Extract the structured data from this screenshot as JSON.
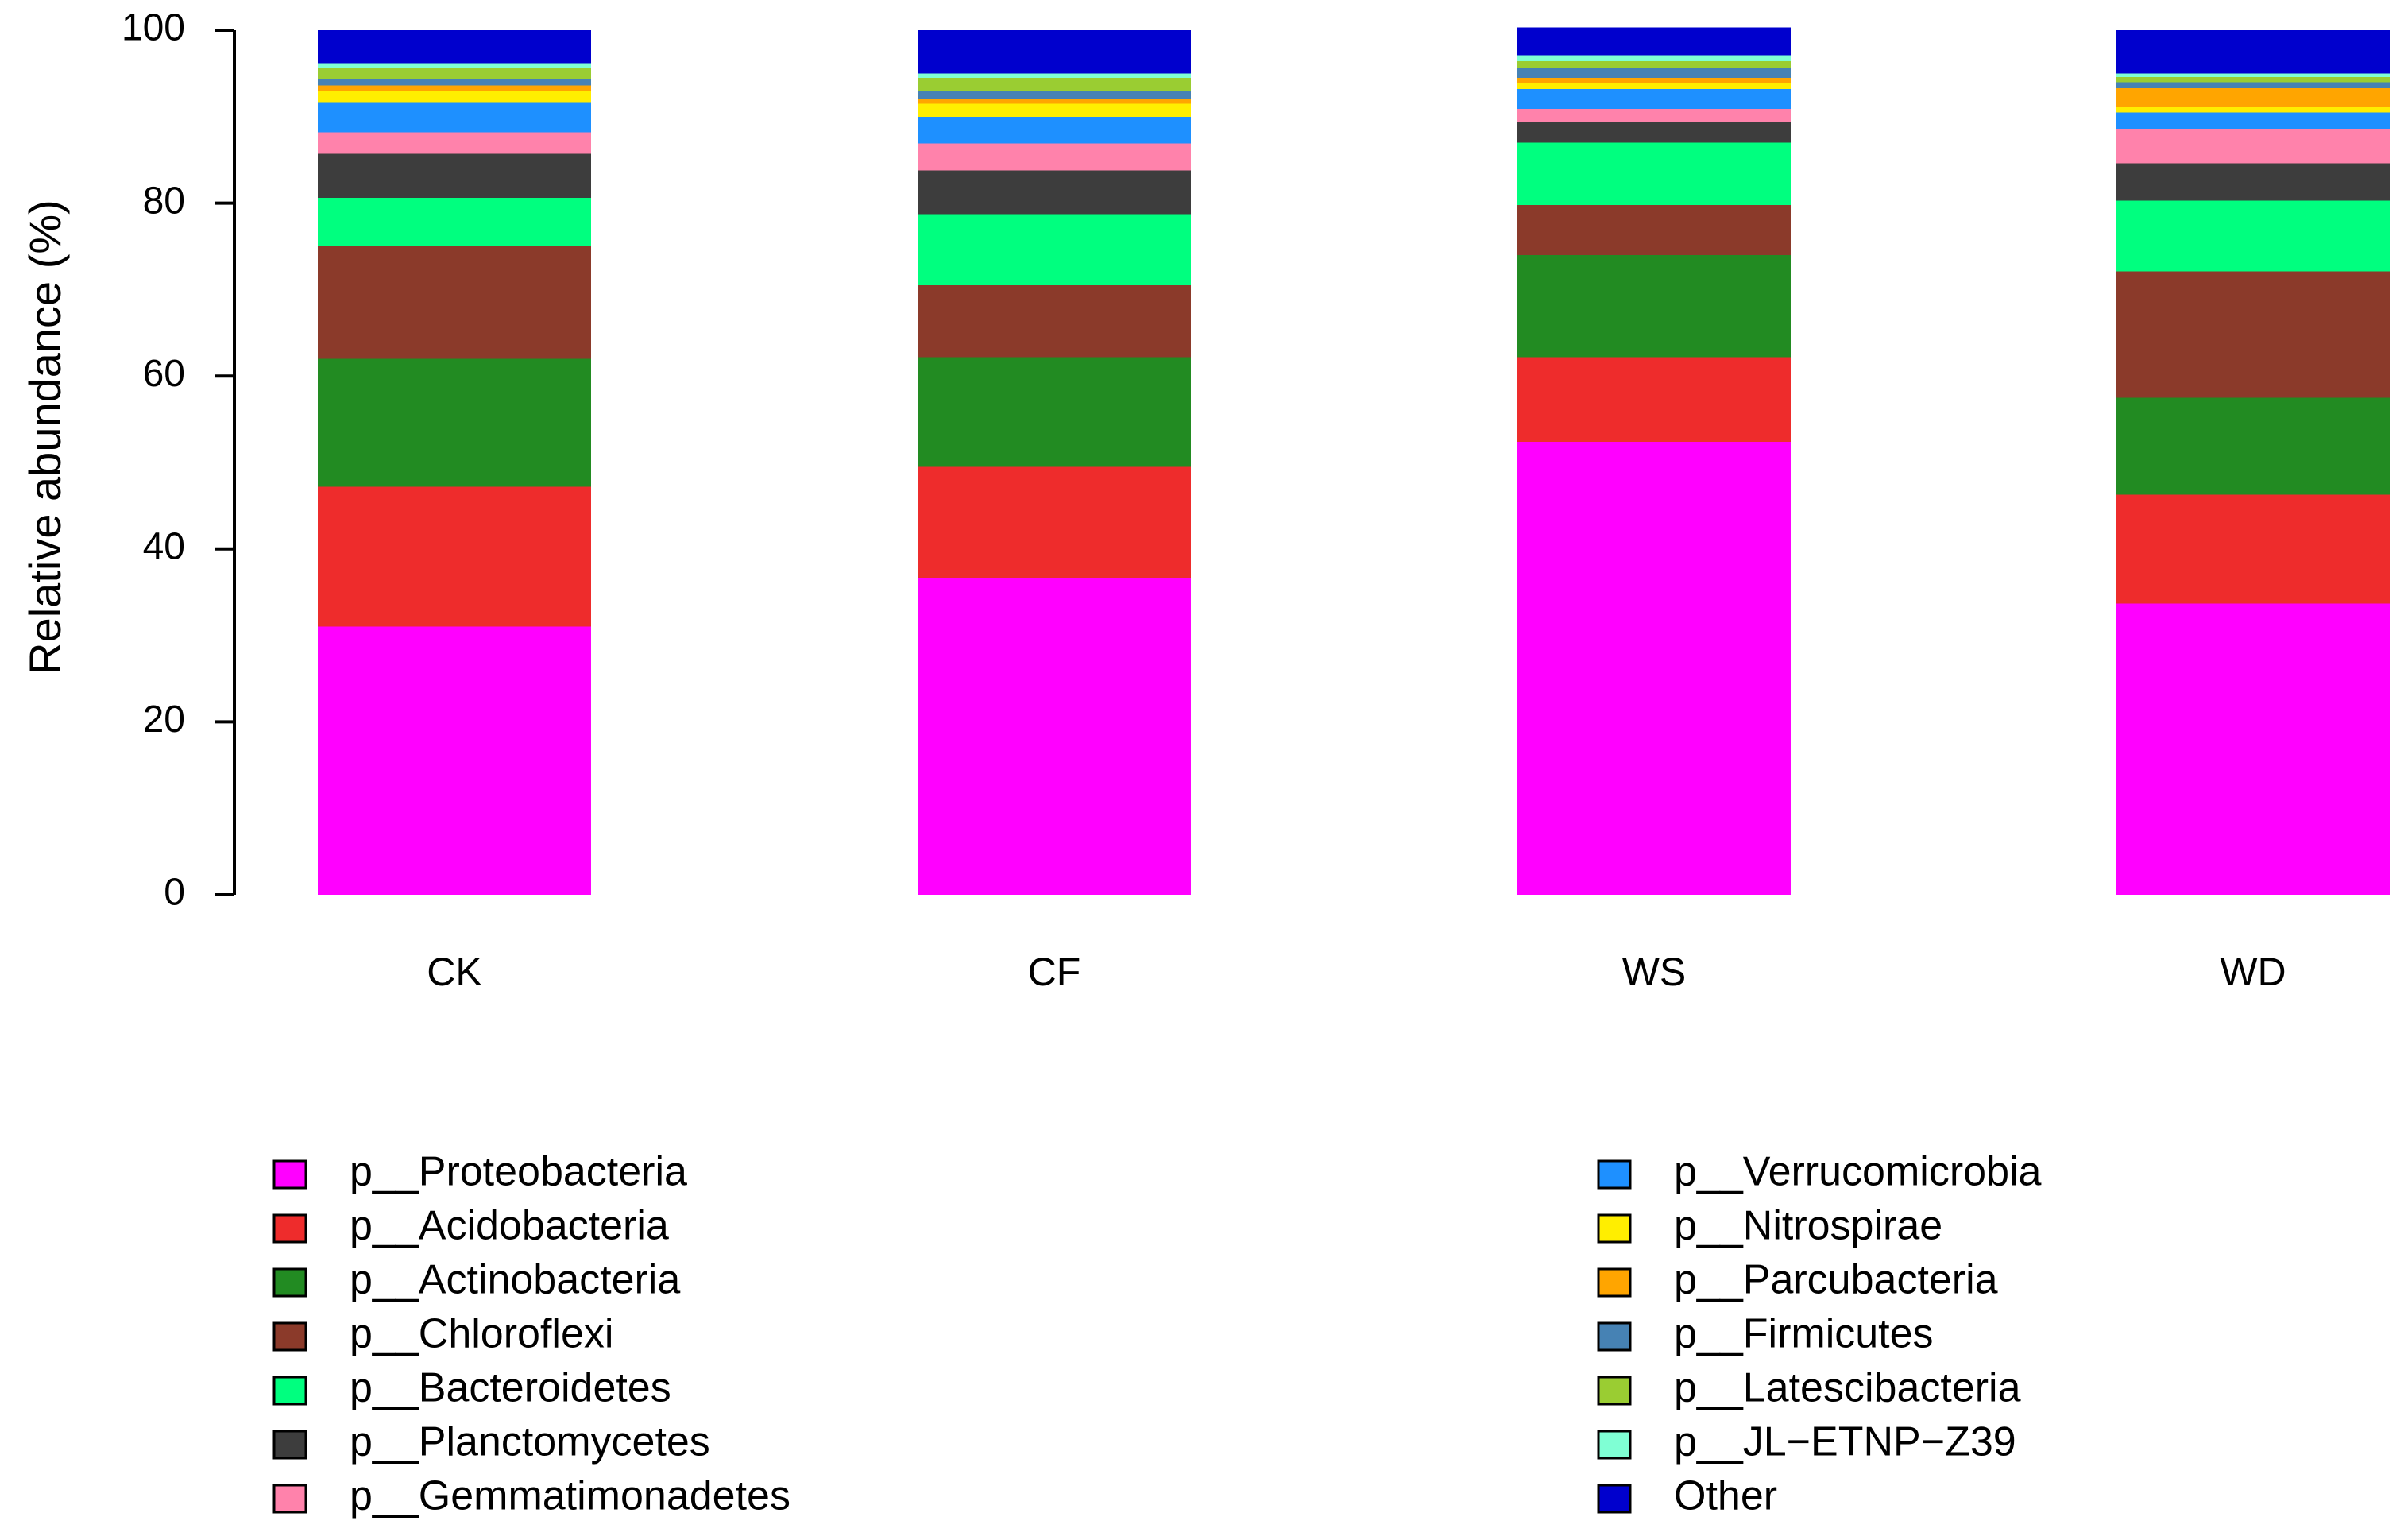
{
  "chart_data": {
    "type": "bar",
    "stacked": true,
    "title": "",
    "xlabel": "",
    "ylabel": "Relative abundance (%)",
    "ylim": [
      0,
      100
    ],
    "yticks": [
      0,
      20,
      40,
      60,
      80,
      100
    ],
    "grid": false,
    "legend_position": "bottom",
    "categories": [
      "CK",
      "CF",
      "WS",
      "WD"
    ],
    "series": [
      {
        "name": "p__Proteobacteria",
        "color": "#FF00FF",
        "values": [
          31.0,
          36.6,
          52.4,
          33.7
        ]
      },
      {
        "name": "p__Acidobacteria",
        "color": "#EE2C2C",
        "values": [
          16.2,
          12.9,
          9.8,
          12.6
        ]
      },
      {
        "name": "p__Actinobacteria",
        "color": "#228B22",
        "values": [
          14.8,
          12.7,
          11.8,
          11.2
        ]
      },
      {
        "name": "p__Chloroflexi",
        "color": "#8B3A2A",
        "values": [
          13.1,
          8.3,
          5.8,
          14.6
        ]
      },
      {
        "name": "p__Bacteroidetes",
        "color": "#00FF7F",
        "values": [
          5.5,
          8.2,
          7.2,
          8.2
        ]
      },
      {
        "name": "p__Planctomycetes",
        "color": "#3D3D3D",
        "values": [
          5.1,
          5.1,
          2.4,
          4.3
        ]
      },
      {
        "name": "p__Gemmatimonadetes",
        "color": "#FF82AB",
        "values": [
          2.5,
          3.1,
          1.5,
          4.0
        ]
      },
      {
        "name": "p__Verrucomicrobia",
        "color": "#1E90FF",
        "values": [
          3.5,
          3.1,
          2.3,
          1.9
        ]
      },
      {
        "name": "p__Nitrospirae",
        "color": "#FFEE00",
        "values": [
          1.3,
          1.5,
          0.7,
          0.6
        ]
      },
      {
        "name": "p__Parcubacteria",
        "color": "#FFA500",
        "values": [
          0.6,
          0.6,
          0.6,
          2.2
        ]
      },
      {
        "name": "p__Firmicutes",
        "color": "#4682B4",
        "values": [
          0.8,
          0.9,
          1.2,
          0.7
        ]
      },
      {
        "name": "p__Latescibacteria",
        "color": "#9ACD32",
        "values": [
          1.2,
          1.5,
          0.7,
          0.6
        ]
      },
      {
        "name": "p__JL−ETNP−Z39",
        "color": "#7FFFD4",
        "values": [
          0.6,
          0.5,
          0.7,
          0.4
        ]
      },
      {
        "name": "Other",
        "color": "#0000CD",
        "values": [
          3.8,
          5.0,
          3.2,
          5.0
        ]
      }
    ]
  }
}
